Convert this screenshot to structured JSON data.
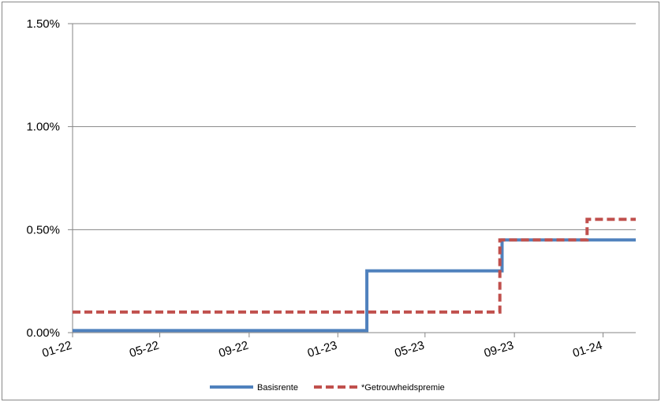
{
  "chart_data": {
    "type": "line",
    "step": true,
    "x_ticks": [
      "01-22",
      "05-22",
      "09-22",
      "01-23",
      "05-23",
      "09-23",
      "01-24"
    ],
    "x_range": [
      "2022-01-01",
      "2024-02-15"
    ],
    "y_ticks": [
      "0.00%",
      "0.50%",
      "1.00%",
      "1.50%"
    ],
    "y_range": [
      0,
      1.5
    ],
    "y_unit": "%",
    "grid": "horizontal",
    "legend_position": "bottom",
    "series": [
      {
        "name": "Basisrente",
        "color": "#4f81bd",
        "style": "solid",
        "points": [
          [
            "2022-01-01",
            0.01
          ],
          [
            "2023-02-10",
            0.01
          ],
          [
            "2023-02-10",
            0.3
          ],
          [
            "2023-08-15",
            0.3
          ],
          [
            "2023-08-15",
            0.45
          ],
          [
            "2024-02-15",
            0.45
          ]
        ]
      },
      {
        "name": "*Getrouwheidspremie",
        "color": "#c0504d",
        "style": "dashed",
        "points": [
          [
            "2022-01-01",
            0.1
          ],
          [
            "2023-08-12",
            0.1
          ],
          [
            "2023-08-12",
            0.45
          ],
          [
            "2023-12-10",
            0.45
          ],
          [
            "2023-12-10",
            0.55
          ],
          [
            "2024-02-15",
            0.55
          ]
        ]
      }
    ]
  }
}
